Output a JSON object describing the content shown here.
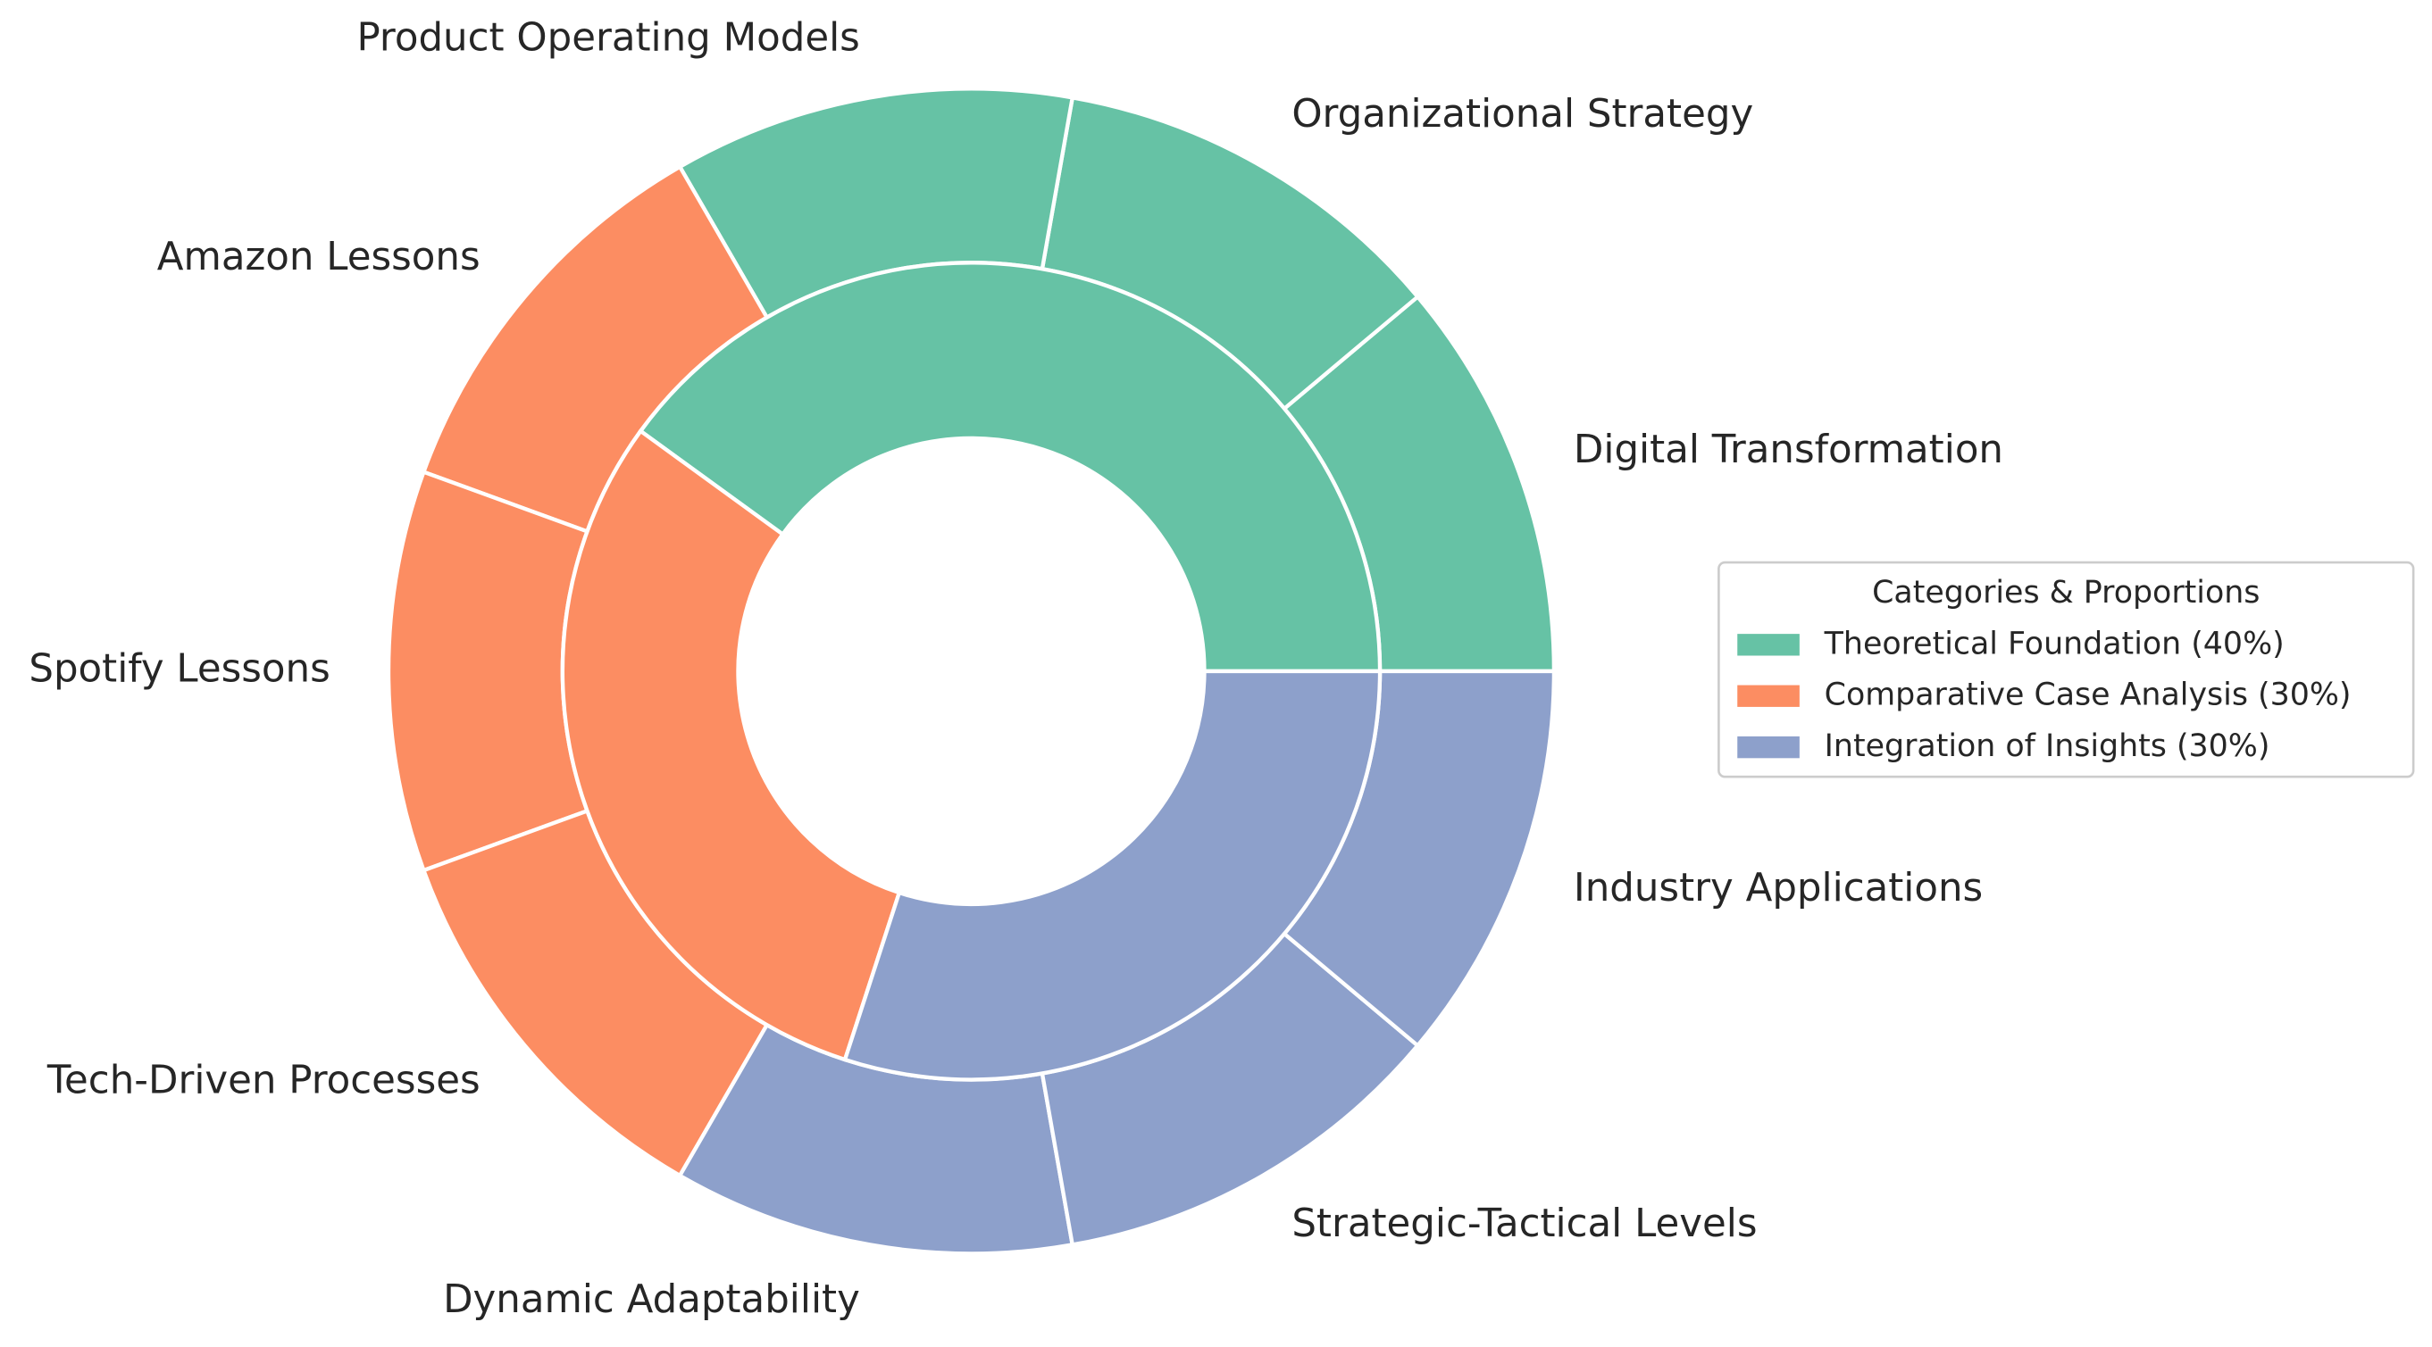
{
  "chart_data": {
    "type": "nested_pie",
    "inner": {
      "names": [
        "Theoretical Foundation (40%)",
        "Comparative Case Analysis (30%)",
        "Integration of Insights (30%)"
      ],
      "values": [
        40,
        30,
        30
      ],
      "colors": [
        "#66c2a5",
        "#fc8d62",
        "#8da0cb"
      ]
    },
    "outer": {
      "labels": [
        "Digital Transformation",
        "Organizational Strategy",
        "Product Operating Models",
        "Amazon Lessons",
        "Spotify Lessons",
        "Tech-Driven Processes",
        "Dynamic Adaptability",
        "Strategic-Tactical Levels",
        "Industry Applications"
      ],
      "values": [
        1,
        1,
        1,
        1,
        1,
        1,
        1,
        1,
        1
      ],
      "colors": [
        "#66c2a5",
        "#66c2a5",
        "#66c2a5",
        "#fc8d62",
        "#fc8d62",
        "#fc8d62",
        "#8da0cb",
        "#8da0cb",
        "#8da0cb"
      ]
    },
    "legend_title": "Categories & Proportions",
    "legend": "right"
  }
}
